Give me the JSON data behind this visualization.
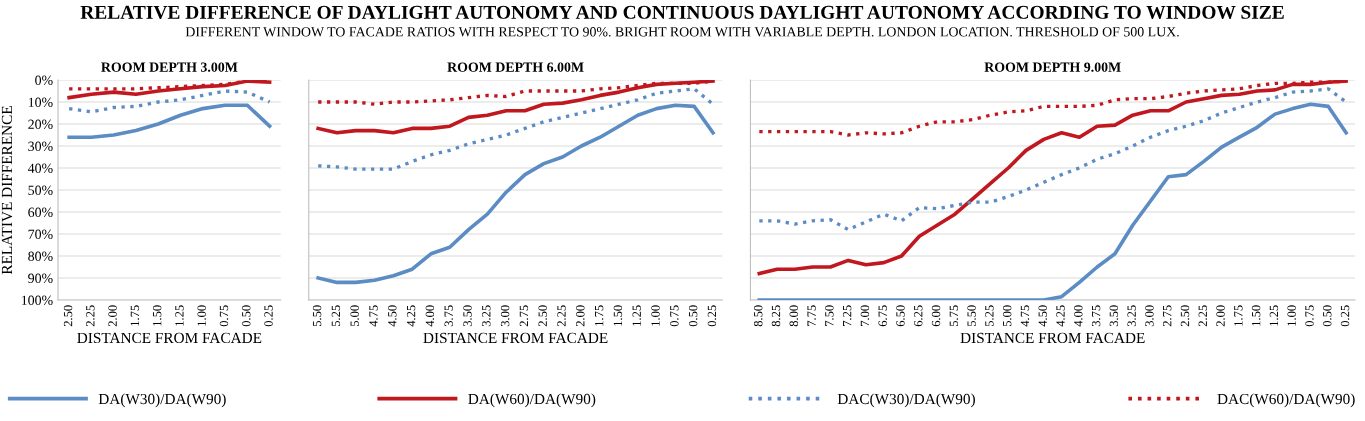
{
  "chart_data": [
    {
      "type": "line",
      "title": "ROOM DEPTH 3.00M",
      "xlabel": "DISTANCE FROM FACADE",
      "ylabel": "RELATIVE DIFFERENCE",
      "annotations": [
        "RELATIVE DIFFERENCE OF DAYLIGHT AUTONOMY AND CONTINUOUS DAYLIGHT AUTONOMY ACCORDING TO WINDOW SIZE",
        "DIFFERENT WINDOW TO FACADE RATIOS WITH RESPECT TO 90%. BRIGHT ROOM WITH VARIABLE DEPTH. LONDON LOCATION. THRESHOLD OF 500 LUX."
      ],
      "categories": [
        "2.50",
        "2.25",
        "2.00",
        "1.75",
        "1.50",
        "1.25",
        "1.00",
        "0.75",
        "0.50",
        "0.25"
      ],
      "ylim": [
        100,
        0
      ],
      "yticks": [
        {
          "value": 0,
          "label": "0%"
        },
        {
          "value": 10,
          "label": "10%"
        },
        {
          "value": 20,
          "label": "20%"
        },
        {
          "value": 30,
          "label": "30%"
        },
        {
          "value": 40,
          "label": "40%"
        },
        {
          "value": 50,
          "label": "50%"
        },
        {
          "value": 60,
          "label": "60%"
        },
        {
          "value": 70,
          "label": "70%"
        },
        {
          "value": 80,
          "label": "80%"
        },
        {
          "value": 90,
          "label": "90%"
        },
        {
          "value": 100,
          "label": "100%"
        }
      ],
      "grid": "y",
      "legend": "bottom",
      "marker": "none",
      "series": [
        {
          "name": "DA(W30)/DA(W90)",
          "color": "#5b8cc4",
          "line_style": "solid",
          "values": [
            26,
            26,
            25,
            23,
            20,
            16,
            13,
            11.5,
            11.5,
            21
          ]
        },
        {
          "name": "DA(W60)/DA(W90)",
          "color": "#c0181e",
          "line_style": "solid",
          "values": [
            8,
            6.5,
            5.5,
            6.5,
            5,
            4,
            3,
            2.5,
            0.5,
            1
          ]
        },
        {
          "name": "DAC(W30)/DA(W90)",
          "color": "#5b8cc4",
          "line_style": "dotted",
          "values": [
            13,
            14.5,
            12.5,
            12,
            10,
            9,
            7,
            5,
            5.5,
            10
          ]
        },
        {
          "name": "DAC(W60)/DA(W90)",
          "color": "#c0181e",
          "line_style": "dotted",
          "values": [
            4,
            4,
            4,
            4,
            3.5,
            3,
            2.5,
            2,
            0.5,
            0.5
          ]
        }
      ]
    },
    {
      "type": "line",
      "title": "ROOM DEPTH 6.00M",
      "xlabel": "DISTANCE FROM FACADE",
      "categories": [
        "5.50",
        "5.25",
        "5.00",
        "4.75",
        "4.50",
        "4.25",
        "4.00",
        "3.75",
        "3.50",
        "3.25",
        "3.00",
        "2.75",
        "2.50",
        "2.25",
        "2.00",
        "1.75",
        "1.50",
        "1.25",
        "1.00",
        "0.75",
        "0.50",
        "0.25"
      ],
      "ylim": [
        100,
        0
      ],
      "yticks": [
        0,
        10,
        20,
        30,
        40,
        50,
        60,
        70,
        80,
        90,
        100
      ],
      "tick_labels": "x",
      "grid": "y",
      "marker": "none",
      "series": [
        {
          "color": "#5b8cc4",
          "line_style": "solid",
          "values": [
            90,
            92,
            92,
            91,
            89,
            86,
            79,
            76,
            68,
            61,
            51,
            43,
            38,
            35,
            30,
            26,
            21,
            16,
            13,
            11.5,
            12,
            24
          ]
        },
        {
          "color": "#c0181e",
          "line_style": "solid",
          "values": [
            22,
            24,
            23,
            23,
            24,
            22,
            22,
            21,
            17,
            16,
            14,
            14,
            11,
            10.5,
            9,
            7,
            5.5,
            3.5,
            2,
            1.5,
            1,
            0.5
          ]
        },
        {
          "color": "#5b8cc4",
          "line_style": "dotted",
          "values": [
            39,
            39.5,
            40.5,
            40.5,
            40.5,
            37,
            34,
            32,
            29,
            27,
            25,
            22,
            19,
            17,
            15,
            13,
            11,
            9,
            6,
            5,
            4,
            11
          ]
        },
        {
          "color": "#c0181e",
          "line_style": "dotted",
          "values": [
            10,
            10,
            10,
            11,
            10,
            10,
            9.5,
            9,
            8,
            7,
            7.5,
            5,
            5,
            5,
            5,
            4,
            3.5,
            2.5,
            1.5,
            1.5,
            1.5,
            0.5
          ]
        }
      ]
    },
    {
      "type": "line",
      "title": "ROOM DEPTH 9.00M",
      "xlabel": "DISTANCE FROM FACADE",
      "categories": [
        "8.50",
        "8.25",
        "8.00",
        "7.75",
        "7.50",
        "7.25",
        "7.00",
        "6.75",
        "6.50",
        "6.25",
        "6.00",
        "5.75",
        "5.50",
        "5.25",
        "5.00",
        "4.75",
        "4.50",
        "4.25",
        "4.00",
        "3.75",
        "3.50",
        "3.25",
        "3.00",
        "2.75",
        "2.50",
        "2.25",
        "2.00",
        "1.75",
        "1.50",
        "1.25",
        "1.00",
        "0.75",
        "0.50",
        "0.25"
      ],
      "ylim": [
        100,
        0
      ],
      "yticks": [
        0,
        10,
        20,
        30,
        40,
        50,
        60,
        70,
        80,
        90,
        100
      ],
      "tick_labels": "x",
      "grid": "y",
      "marker": "none",
      "series": [
        {
          "color": "#5b8cc4",
          "line_style": "solid",
          "values": [
            100,
            100,
            100,
            100,
            100,
            100,
            100,
            100,
            100,
            100,
            100,
            100,
            100,
            100,
            100,
            100,
            100,
            98.5,
            92,
            85,
            79,
            66,
            55,
            44,
            43,
            37,
            30.5,
            26,
            21.5,
            15.5,
            13,
            11,
            12,
            24
          ]
        },
        {
          "color": "#c0181e",
          "line_style": "solid",
          "values": [
            88,
            86,
            86,
            85,
            85,
            82,
            84,
            83,
            80,
            71,
            66,
            61,
            54,
            47,
            40,
            32,
            27,
            24,
            26,
            21,
            20.5,
            16,
            14,
            14,
            10,
            8.5,
            7,
            6.5,
            5,
            4.5,
            2,
            2,
            1,
            0.5
          ]
        },
        {
          "color": "#5b8cc4",
          "line_style": "dotted",
          "values": [
            64,
            64,
            65.5,
            64,
            63.5,
            68,
            64.5,
            61,
            64,
            58,
            58.5,
            57,
            55.5,
            55.5,
            53,
            50,
            46.5,
            43,
            40,
            36,
            33.5,
            30,
            26,
            23,
            21,
            18.5,
            15,
            12.5,
            10,
            8,
            5.5,
            5,
            4,
            10
          ]
        },
        {
          "color": "#c0181e",
          "line_style": "dotted",
          "values": [
            23.5,
            23.5,
            23.5,
            23.5,
            23.5,
            25,
            24,
            24.5,
            24,
            21,
            19,
            19,
            18,
            16,
            14.5,
            14,
            12,
            12,
            12,
            11.5,
            9,
            8.5,
            8.5,
            7.5,
            6,
            5,
            4.5,
            4,
            2.5,
            1.5,
            1.5,
            1,
            1,
            0.5
          ]
        }
      ]
    }
  ]
}
